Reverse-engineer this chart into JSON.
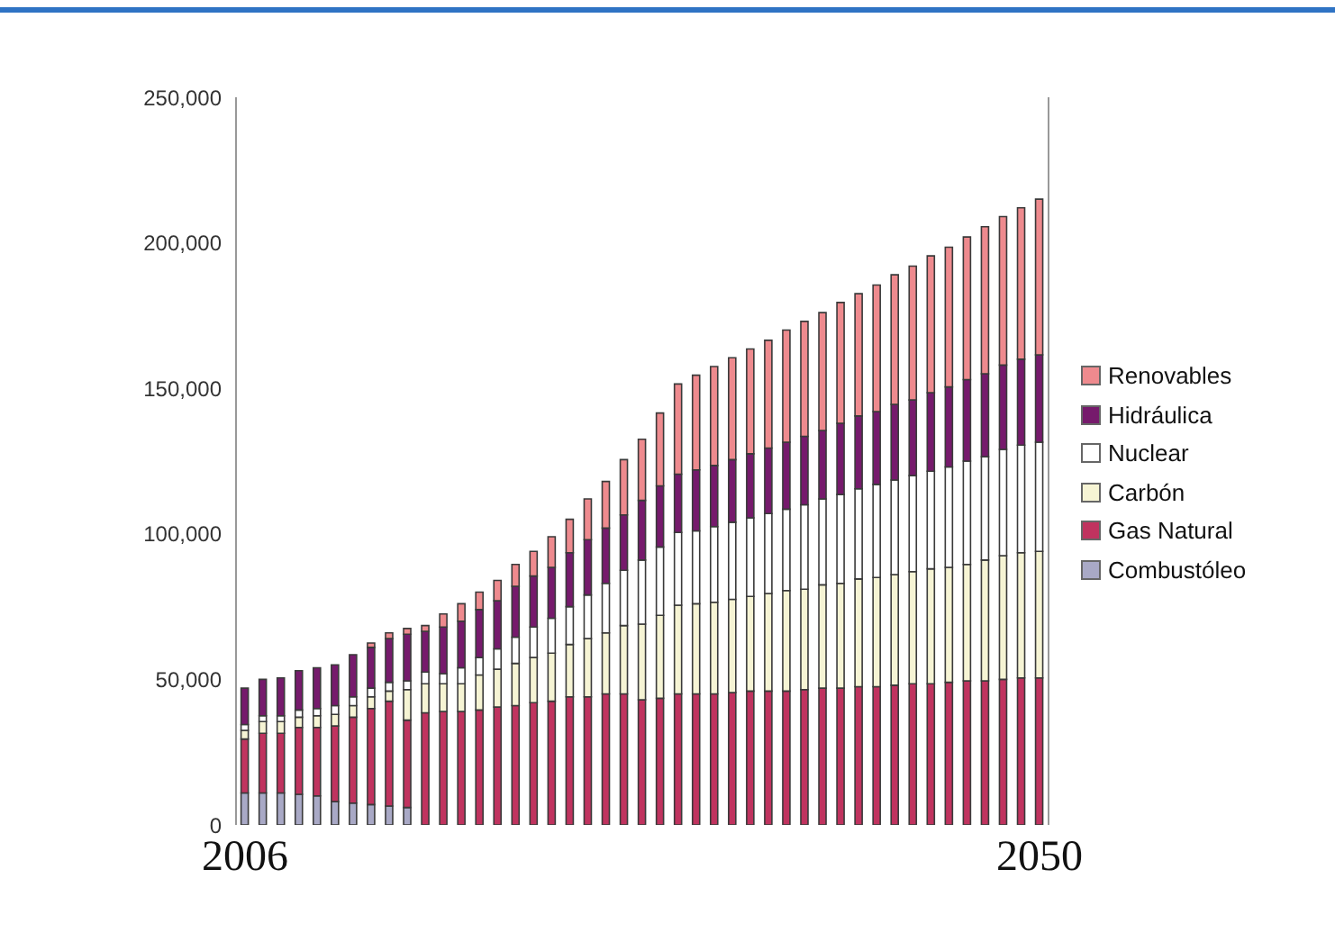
{
  "chart_data": {
    "type": "bar",
    "stacked": true,
    "legend": "right",
    "grid": false,
    "categories": [
      "2006",
      null,
      null,
      null,
      null,
      null,
      null,
      null,
      null,
      null,
      null,
      null,
      null,
      null,
      null,
      null,
      null,
      null,
      null,
      null,
      null,
      null,
      null,
      null,
      null,
      null,
      null,
      null,
      null,
      null,
      null,
      null,
      null,
      null,
      null,
      null,
      null,
      null,
      null,
      null,
      null,
      null,
      null,
      null,
      "2050"
    ],
    "ylim": [
      0,
      250000
    ],
    "yticks": [
      {
        "value": 0,
        "label": "0"
      },
      {
        "value": 50000,
        "label": "50,000"
      },
      {
        "value": 100000,
        "label": "100,000"
      },
      {
        "value": 150000,
        "label": "150,000"
      },
      {
        "value": 200000,
        "label": "200,000"
      },
      {
        "value": 250000,
        "label": "250,000"
      }
    ],
    "series": [
      {
        "name": "Combustóleo",
        "color": "#a9a9c6",
        "values": [
          11000,
          11000,
          11000,
          10500,
          10000,
          8000,
          7500,
          7000,
          6500,
          6000,
          0,
          0,
          0,
          0,
          0,
          0,
          0,
          0,
          0,
          0,
          0,
          0,
          0,
          0,
          0,
          0,
          0,
          0,
          0,
          0,
          0,
          0,
          0,
          0,
          0,
          0,
          0,
          0,
          0,
          0,
          0,
          0,
          0,
          0,
          0
        ]
      },
      {
        "name": "Gas Natural",
        "color": "#c0335f",
        "values": [
          18500,
          20500,
          20500,
          23000,
          23500,
          26000,
          29500,
          33000,
          36000,
          30000,
          38500,
          39000,
          39000,
          39500,
          40500,
          41000,
          42000,
          42500,
          44000,
          44000,
          45000,
          45000,
          43000,
          43500,
          45000,
          45000,
          45000,
          45500,
          46000,
          46000,
          46000,
          46500,
          47000,
          47000,
          47500,
          47500,
          48000,
          48500,
          48500,
          49000,
          49500,
          49500,
          50000,
          50500,
          50500
        ]
      },
      {
        "name": "Carbón",
        "color": "#f6f4d4",
        "values": [
          3000,
          4000,
          4000,
          3500,
          4000,
          4000,
          4000,
          4000,
          3500,
          10500,
          10000,
          9500,
          9500,
          12000,
          13000,
          14500,
          15500,
          16500,
          18000,
          20000,
          21000,
          23500,
          26000,
          28500,
          30500,
          31000,
          31500,
          32000,
          32500,
          33500,
          34500,
          34500,
          35500,
          36000,
          37000,
          37500,
          38000,
          38500,
          39500,
          39500,
          40000,
          41500,
          42500,
          43000,
          43500
        ]
      },
      {
        "name": "Nuclear",
        "color": "#ffffff",
        "values": [
          2000,
          2000,
          2000,
          2500,
          2500,
          3000,
          3000,
          3000,
          3000,
          3000,
          4000,
          3500,
          5500,
          6000,
          7000,
          9000,
          10500,
          12000,
          13000,
          15000,
          17000,
          19000,
          22000,
          23500,
          25000,
          25000,
          26000,
          26500,
          27000,
          27500,
          28000,
          29000,
          29500,
          30500,
          31000,
          32000,
          32500,
          33000,
          33500,
          34500,
          35500,
          35500,
          36500,
          37000,
          37500
        ]
      },
      {
        "name": "Hidráulica",
        "color": "#761a6c",
        "values": [
          12500,
          12500,
          13000,
          13500,
          14000,
          14000,
          14500,
          14000,
          15000,
          16000,
          14000,
          16000,
          16000,
          16500,
          16500,
          17500,
          17500,
          17500,
          18500,
          19000,
          19000,
          19000,
          20500,
          21000,
          20000,
          21000,
          21000,
          21500,
          22000,
          22500,
          23000,
          23500,
          23500,
          24500,
          25000,
          25000,
          26000,
          26000,
          27000,
          27500,
          28000,
          28500,
          29000,
          29500,
          30000
        ]
      },
      {
        "name": "Renovables",
        "color": "#ee8a8e",
        "values": [
          0,
          0,
          0,
          0,
          0,
          0,
          null,
          1500,
          2000,
          2000,
          2000,
          4500,
          6000,
          6000,
          7000,
          7500,
          8500,
          10500,
          11500,
          14000,
          16000,
          19000,
          21000,
          25000,
          31000,
          32500,
          34000,
          35000,
          36000,
          37000,
          38500,
          39500,
          40500,
          41500,
          42000,
          43500,
          44500,
          46000,
          47000,
          48000,
          49000,
          50500,
          51000,
          52000,
          53500
        ]
      }
    ]
  }
}
